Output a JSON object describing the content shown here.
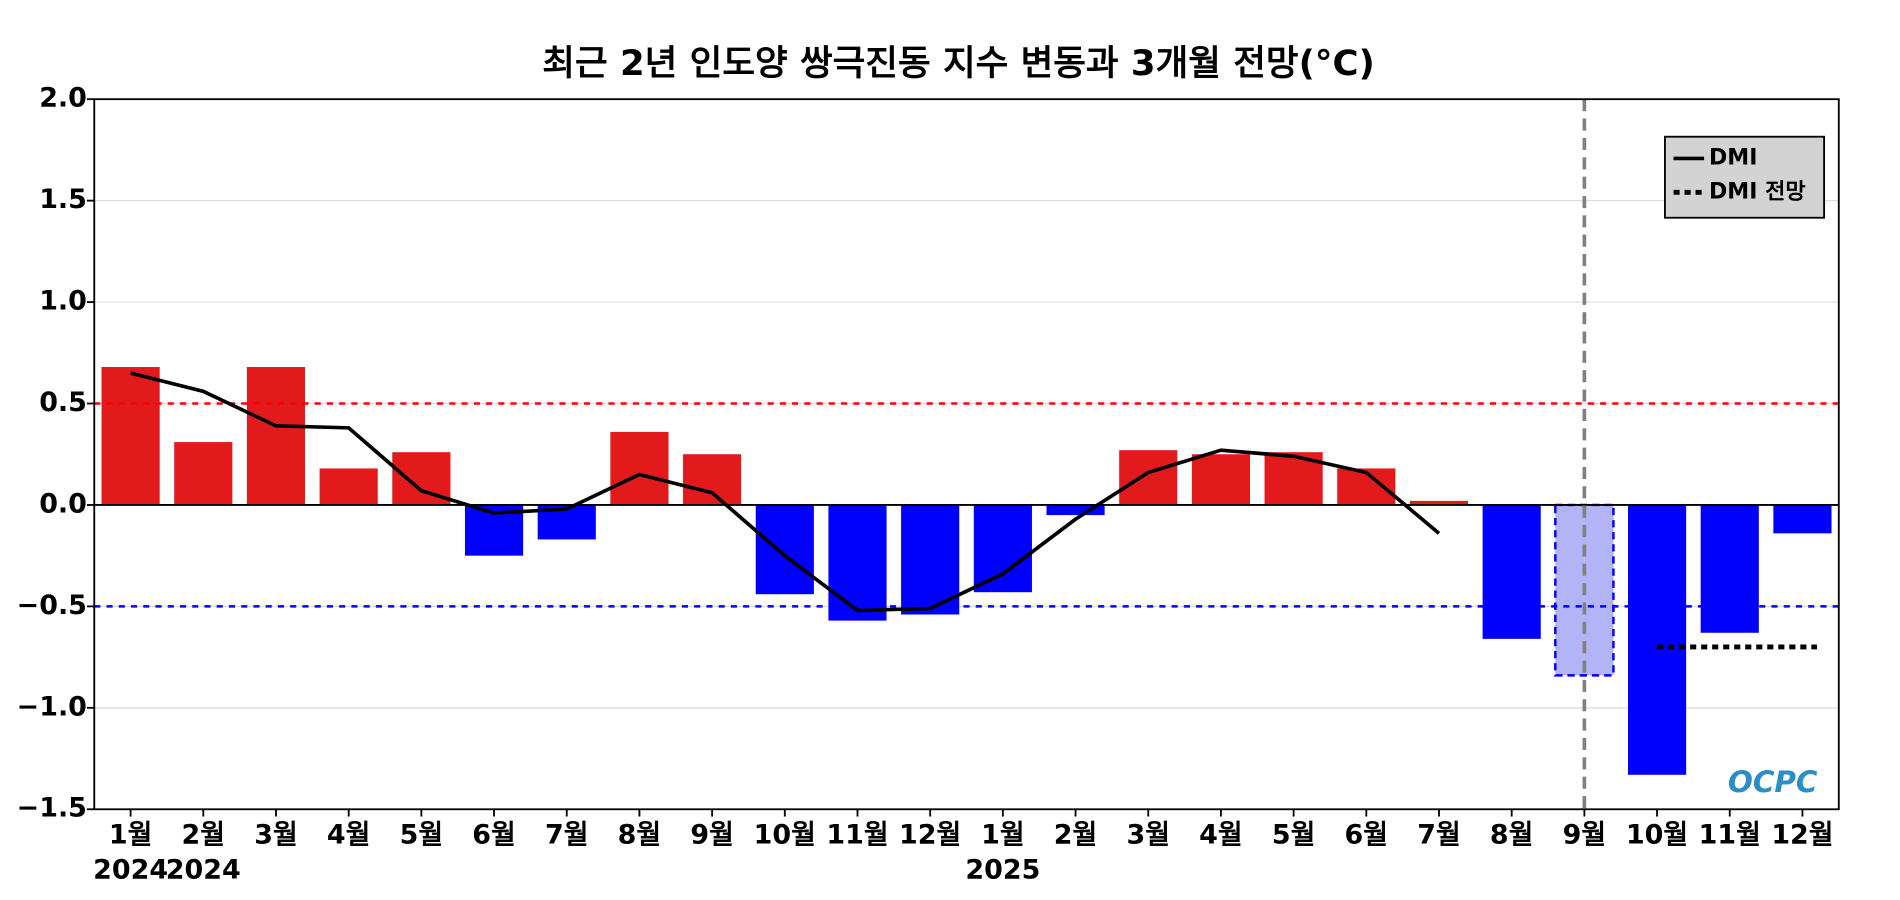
{
  "chart_data": {
    "type": "bar",
    "title": "최근 2년 인도양 쌍극진동 지수 변동과 3개월 전망(°C)",
    "categories": [
      "1월",
      "2월",
      "3월",
      "4월",
      "5월",
      "6월",
      "7월",
      "8월",
      "9월",
      "10월",
      "11월",
      "12월",
      "1월",
      "2월",
      "3월",
      "4월",
      "5월",
      "6월",
      "7월",
      "8월",
      "9월",
      "10월",
      "11월",
      "12월"
    ],
    "years": [
      "2024",
      "2024",
      null,
      null,
      null,
      null,
      null,
      null,
      null,
      null,
      null,
      null,
      "2025",
      null,
      null,
      null,
      null,
      null,
      null,
      null,
      null,
      null,
      null,
      null
    ],
    "values": [
      0.68,
      0.31,
      0.68,
      0.18,
      0.26,
      -0.25,
      -0.17,
      0.36,
      0.25,
      -0.44,
      -0.57,
      -0.54,
      -0.43,
      -0.05,
      0.27,
      0.25,
      0.26,
      0.18,
      0.02,
      -0.66,
      -0.84,
      -1.33,
      -0.63,
      -0.14
    ],
    "colors": [
      "#e31a1c",
      "#e31a1c",
      "#e31a1c",
      "#e31a1c",
      "#e31a1c",
      "#0000ff",
      "#0000ff",
      "#e31a1c",
      "#e31a1c",
      "#0000ff",
      "#0000ff",
      "#0000ff",
      "#0000ff",
      "#0000ff",
      "#e31a1c",
      "#e31a1c",
      "#e31a1c",
      "#e31a1c",
      "#e31a1c",
      "#0000ff",
      "#b3b3f8",
      "#0000ff",
      "#0000ff",
      "#0000ff"
    ],
    "series": [
      {
        "name": "DMI",
        "color": "#000000",
        "style": "solid",
        "values": [
          0.65,
          0.56,
          0.39,
          0.38,
          0.07,
          -0.04,
          -0.02,
          0.15,
          0.06,
          -0.25,
          -0.52,
          -0.51,
          -0.34,
          -0.07,
          0.16,
          0.27,
          0.24,
          0.16,
          -0.14,
          null,
          null,
          null,
          null,
          null
        ]
      },
      {
        "name": "DMI 전망",
        "color": "#000000",
        "style": "dotted",
        "values": [
          null,
          null,
          null,
          null,
          null,
          null,
          null,
          null,
          null,
          null,
          null,
          null,
          null,
          null,
          null,
          null,
          null,
          null,
          null,
          null,
          null,
          -0.7,
          -0.7,
          -0.7
        ]
      }
    ],
    "hlines": [
      {
        "value": 0.5,
        "color": "#ff0000"
      },
      {
        "value": -0.5,
        "color": "#0000ff"
      }
    ],
    "vline_x": 20,
    "ylim": [
      -1.5,
      2.0
    ],
    "yticks": [
      {
        "value": -1.5,
        "label": "−1.5"
      },
      {
        "value": -1.0,
        "label": "−1.0"
      },
      {
        "value": -0.5,
        "label": "−0.5"
      },
      {
        "value": 0,
        "label": "0.0"
      },
      {
        "value": 0.5,
        "label": "0.5"
      },
      {
        "value": 1.0,
        "label": "1.0"
      },
      {
        "value": 1.5,
        "label": "1.5"
      },
      {
        "value": 2.0,
        "label": "2.0"
      }
    ],
    "grid": true,
    "legend": "upper right",
    "logo": "OCPC"
  }
}
